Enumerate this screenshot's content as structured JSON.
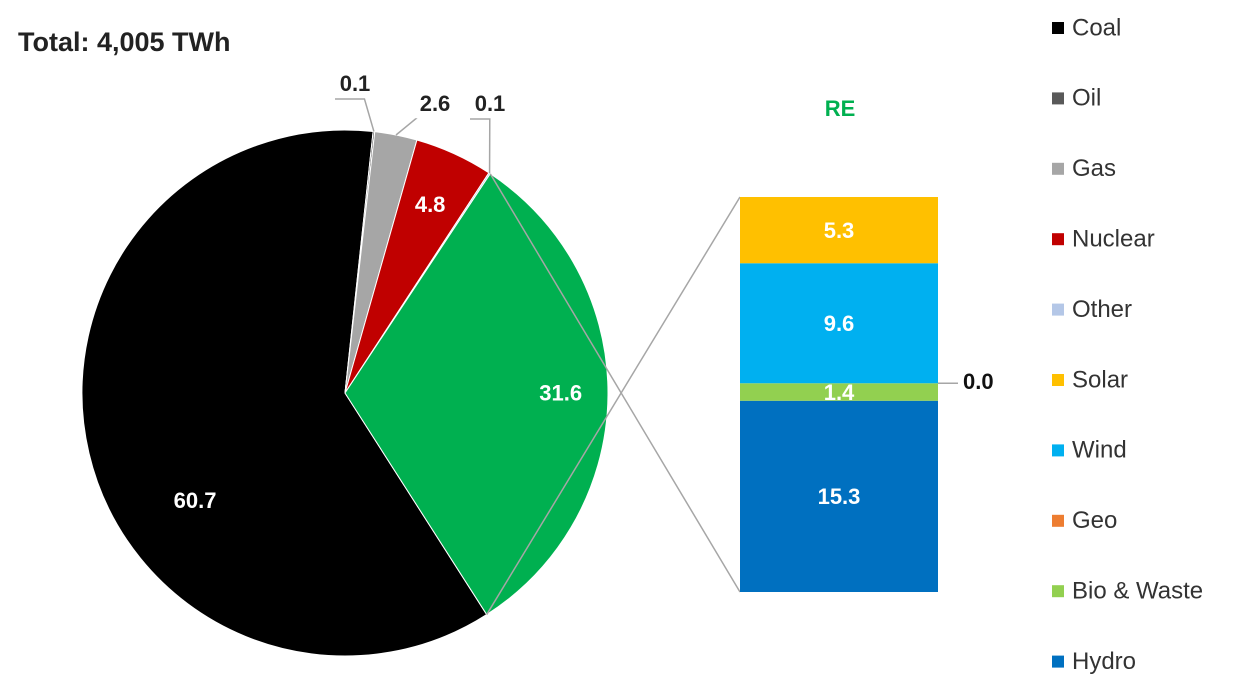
{
  "chart_data": {
    "type": "pie",
    "title": "Total: 4,005 TWh",
    "categories": [
      "Coal",
      "Oil",
      "Gas",
      "Nuclear",
      "Other",
      "RE"
    ],
    "values": [
      60.7,
      0.1,
      2.6,
      4.8,
      0.1,
      31.6
    ],
    "colors": [
      "#000000",
      "#595959",
      "#a6a6a6",
      "#c00000",
      "#b4c7e7",
      "#00b050"
    ],
    "bar": {
      "categories": [
        "Solar",
        "Wind",
        "Geo",
        "Bio & Waste",
        "Hydro"
      ],
      "values": [
        5.3,
        9.6,
        0.0,
        1.4,
        15.3
      ],
      "value_labels": [
        "5.3",
        "9.6",
        "0.0",
        "1.4",
        "15.3"
      ],
      "colors": [
        "#ffc000",
        "#00b0f0",
        "#ed7d31",
        "#92d050",
        "#0070c0"
      ]
    }
  }
}
